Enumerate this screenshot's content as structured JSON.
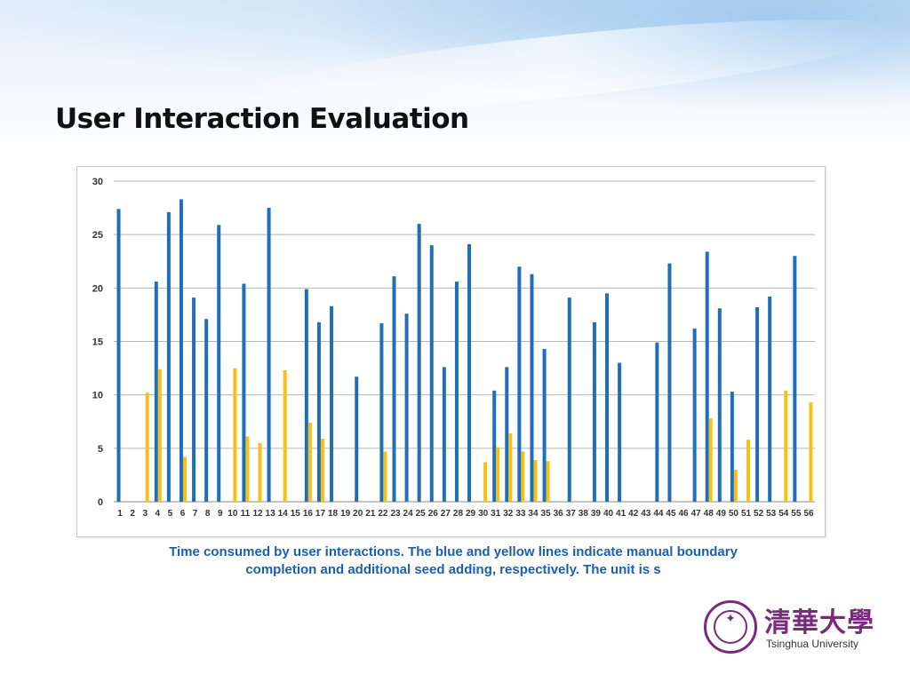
{
  "slide": {
    "title": "User Interaction Evaluation",
    "caption_line1": "Time consumed by user interactions. The blue and yellow lines indicate manual boundary",
    "caption_line2": "completion and additional seed adding, respectively. The unit is s"
  },
  "logo": {
    "chinese_name": "清華大學",
    "english_name": "Tsinghua University",
    "seal_icon": "tsinghua-seal-icon"
  },
  "colors": {
    "blue": "#1f6fb8",
    "yellow": "#f5c117",
    "caption": "#1a5fb0",
    "brand_purple": "#7a2a7c"
  },
  "chart_data": {
    "type": "bar",
    "title": "",
    "xlabel": "",
    "ylabel": "",
    "ylim": [
      0,
      30
    ],
    "yticks": [
      0,
      5,
      10,
      15,
      20,
      25,
      30
    ],
    "grid": true,
    "categories": [
      "1",
      "2",
      "3",
      "4",
      "5",
      "6",
      "7",
      "8",
      "9",
      "10",
      "11",
      "12",
      "13",
      "14",
      "15",
      "16",
      "17",
      "18",
      "19",
      "20",
      "21",
      "22",
      "23",
      "24",
      "25",
      "26",
      "27",
      "28",
      "29",
      "30",
      "31",
      "32",
      "33",
      "34",
      "35",
      "36",
      "37",
      "38",
      "39",
      "40",
      "41",
      "42",
      "43",
      "44",
      "45",
      "46",
      "47",
      "48",
      "49",
      "50",
      "51",
      "52",
      "53",
      "54",
      "55",
      "56"
    ],
    "series": [
      {
        "color": "#1f6fb8",
        "values": [
          27.4,
          0,
          0,
          20.6,
          27.1,
          28.3,
          19.1,
          17.1,
          25.9,
          0,
          20.4,
          0,
          27.5,
          0,
          0,
          19.9,
          16.8,
          18.3,
          0,
          11.7,
          0,
          16.7,
          21.1,
          17.6,
          26.0,
          24.0,
          12.6,
          20.6,
          24.1,
          0,
          10.4,
          12.6,
          22.0,
          21.3,
          14.3,
          0,
          19.1,
          0,
          16.8,
          19.5,
          13.0,
          0,
          0,
          14.9,
          22.3,
          0,
          16.2,
          23.4,
          18.1,
          10.3,
          0,
          18.2,
          19.2,
          0,
          23.0,
          0
        ]
      },
      {
        "color": "#f5c117",
        "values": [
          0,
          0,
          10.2,
          12.4,
          0,
          4.2,
          0,
          0,
          0,
          12.5,
          6.1,
          5.5,
          0,
          12.3,
          0,
          7.4,
          5.9,
          0,
          0,
          0,
          0,
          4.7,
          0,
          0,
          0,
          0,
          0,
          0,
          0,
          3.7,
          5.1,
          6.4,
          4.7,
          3.9,
          3.8,
          0,
          0,
          0,
          0,
          0,
          0,
          0,
          0,
          0,
          0,
          0,
          0,
          7.8,
          0,
          3.0,
          5.8,
          0,
          0,
          10.4,
          0,
          9.3
        ]
      }
    ]
  }
}
